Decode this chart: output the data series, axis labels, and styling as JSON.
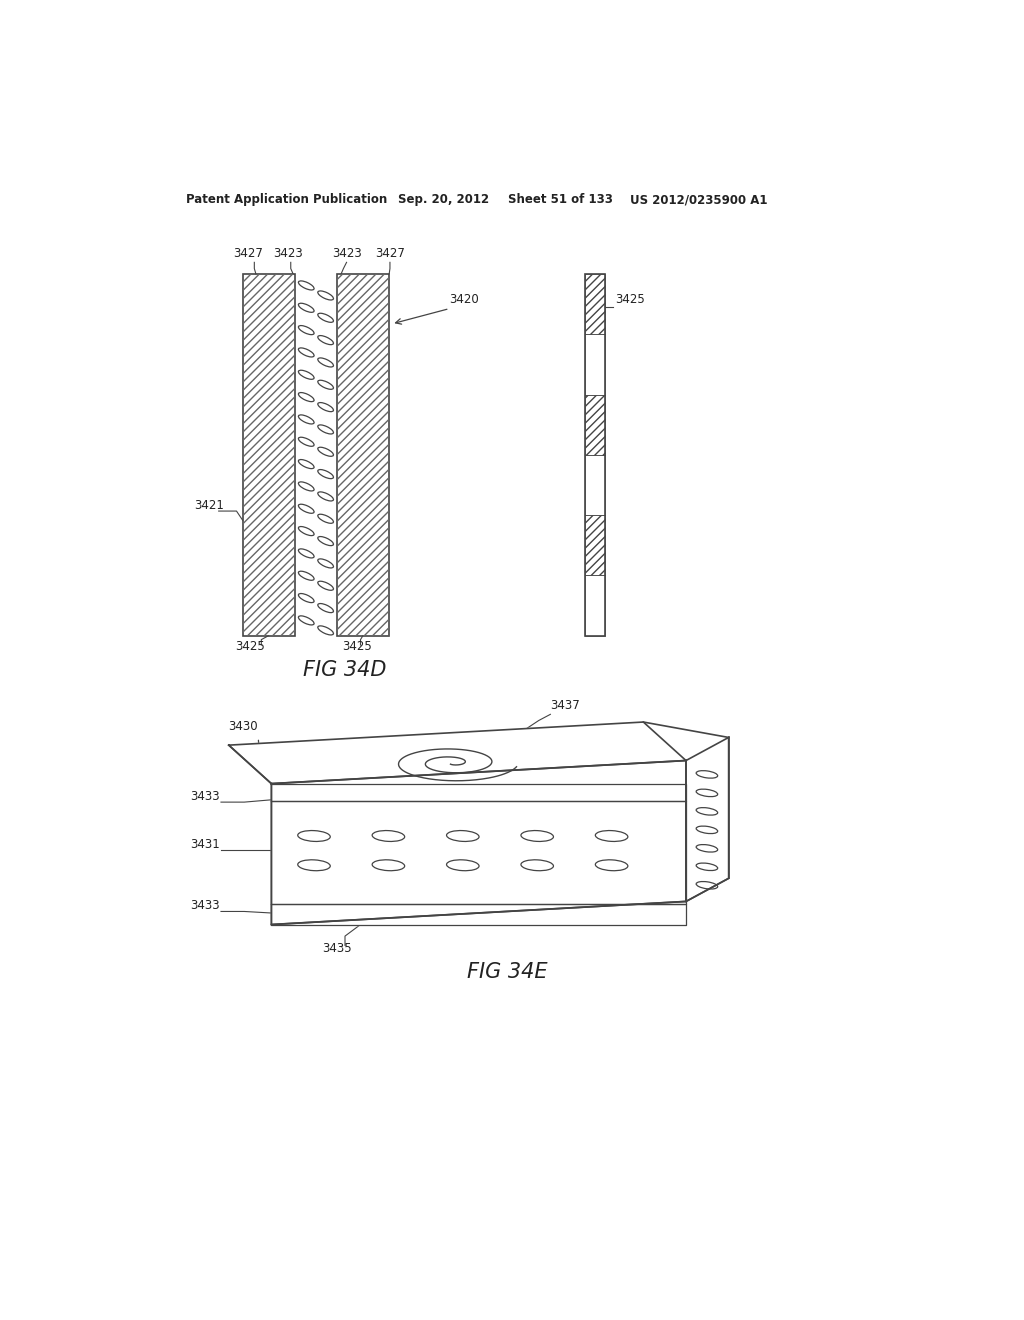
{
  "background_color": "#ffffff",
  "header_text": "Patent Application Publication",
  "header_date": "Sep. 20, 2012",
  "header_sheet": "Sheet 51 of 133",
  "header_patent": "US 2012/0235900 A1",
  "fig34d_label": "FIG 34D",
  "fig34e_label": "FIG 34E",
  "line_color": "#444444",
  "hatch_color": "#666666",
  "text_color": "#222222"
}
